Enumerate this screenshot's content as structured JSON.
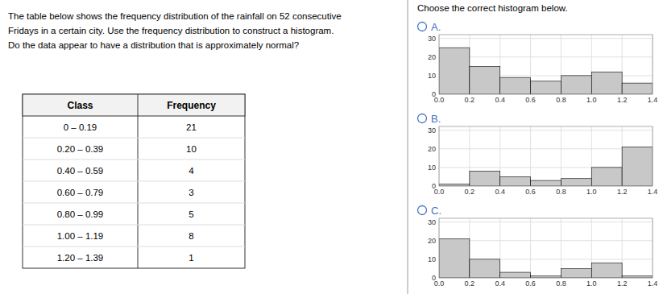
{
  "chart_data": [
    {
      "type": "table",
      "annotations": [
        "The table below shows the frequency distribution of the rainfall on 52 consecutive",
        "Fridays in a certain city. Use the frequency distribution to construct a histogram.",
        "Do the data appear to have a distribution that is approximately normal?"
      ],
      "x_label": "Class",
      "y_label": "Frequency",
      "categories": [
        "0 – 0.19",
        "0.20 – 0.39",
        "0.40 – 0.59",
        "0.60 – 0.79",
        "0.80 – 0.99",
        "1.00 – 1.19",
        "1.20 – 1.39"
      ],
      "values": [
        21,
        10,
        4,
        3,
        5,
        8,
        1
      ]
    },
    {
      "type": "histogram",
      "title": "A.",
      "annotations": [
        "Choose the correct histogram below."
      ],
      "bins": [
        0.0,
        0.2,
        0.4,
        0.6,
        0.8,
        1.0,
        1.2,
        1.4
      ],
      "values": [
        25,
        15,
        9,
        7,
        10,
        12,
        6
      ],
      "color": "#c8c8c8",
      "xlim": [
        0.0,
        1.4
      ],
      "ylim": [
        0,
        32
      ],
      "xticks": [
        {
          "value": 0.0,
          "label": "0.0"
        },
        0.2,
        0.4,
        0.6,
        0.8,
        {
          "value": 1.0,
          "label": "1.0"
        },
        1.2,
        1.4
      ],
      "yticks": [
        0,
        10,
        20,
        30
      ],
      "grid": true
    },
    {
      "type": "histogram",
      "title": "B.",
      "bins": [
        0.0,
        0.2,
        0.4,
        0.6,
        0.8,
        1.0,
        1.2,
        1.4
      ],
      "values": [
        1,
        8,
        5,
        3,
        4,
        10,
        21
      ],
      "color": "#c8c8c8",
      "xlim": [
        0.0,
        1.4
      ],
      "ylim": [
        0,
        32
      ],
      "xticks": [
        {
          "value": 0.0,
          "label": "0.0"
        },
        0.2,
        0.4,
        0.6,
        0.8,
        {
          "value": 1.0,
          "label": "1.0"
        },
        1.2,
        1.4
      ],
      "yticks": [
        0,
        10,
        20,
        30
      ],
      "grid": true
    },
    {
      "type": "histogram",
      "title": "C.",
      "bins": [
        0.0,
        0.2,
        0.4,
        0.6,
        0.8,
        1.0,
        1.2,
        1.4
      ],
      "values": [
        21,
        10,
        3,
        1,
        5,
        8,
        1
      ],
      "color": "#c8c8c8",
      "xlim": [
        0.0,
        1.4
      ],
      "ylim": [
        0,
        32
      ],
      "xticks": [
        {
          "value": 0.0,
          "label": "0.0"
        },
        0.2,
        0.4,
        0.6,
        0.8,
        {
          "value": 1.0,
          "label": "1.0"
        },
        1.2,
        1.4
      ],
      "yticks": [
        0,
        10,
        20,
        30
      ],
      "grid": true
    }
  ]
}
